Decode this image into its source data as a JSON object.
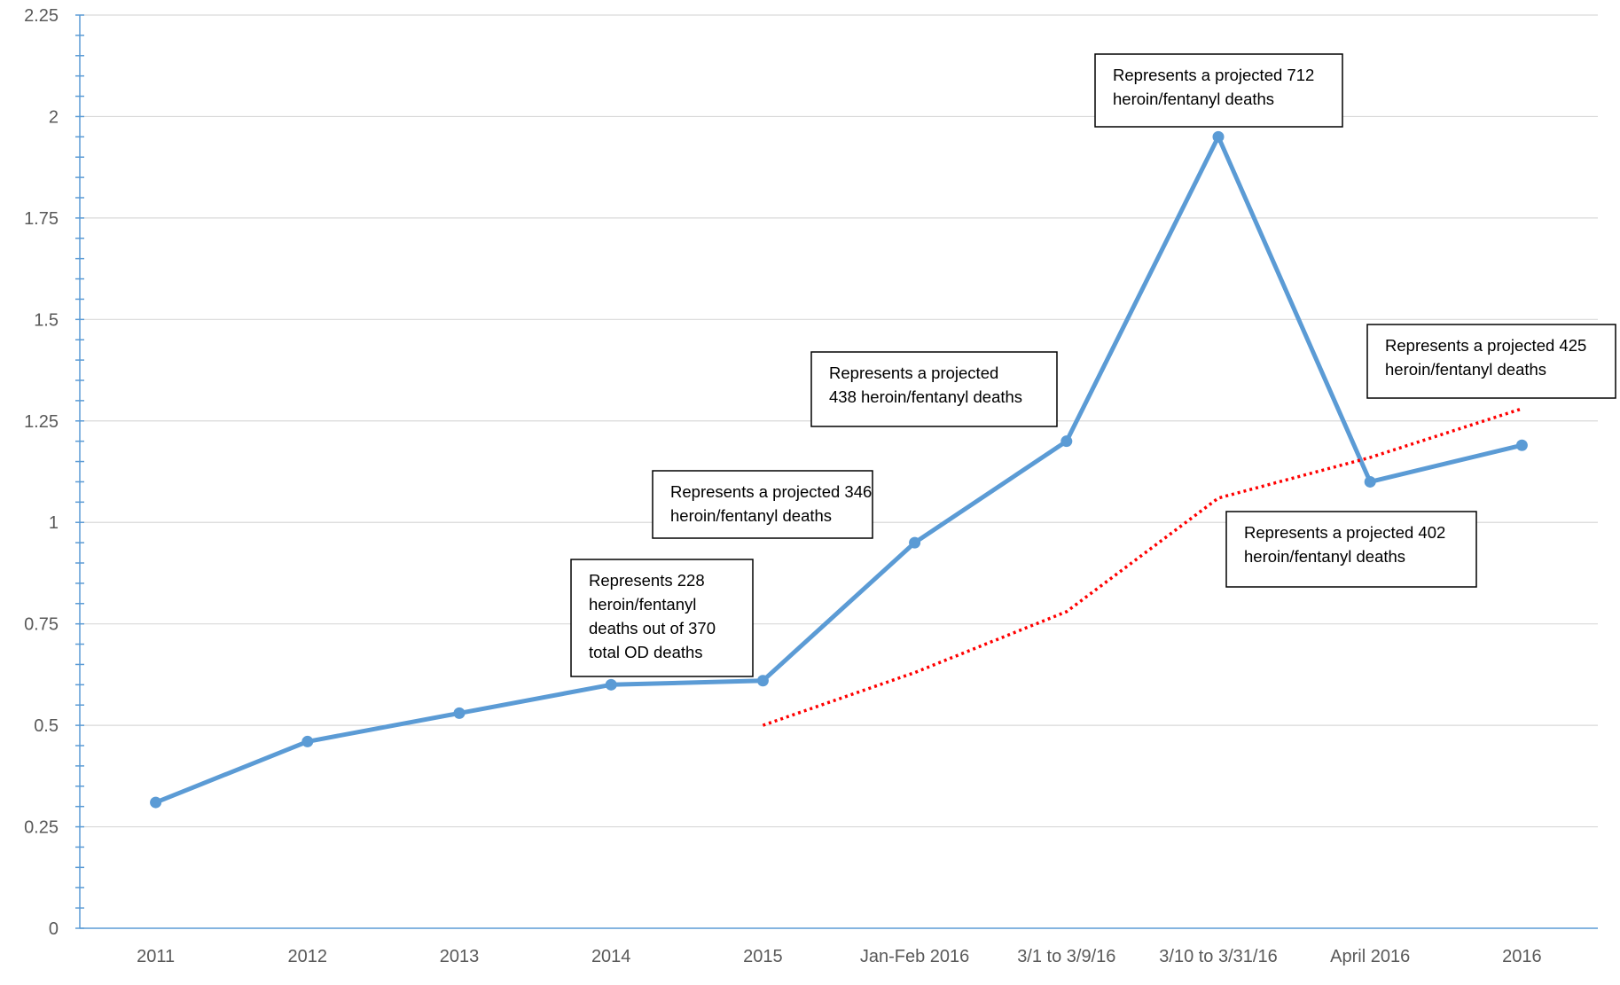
{
  "chart_data": {
    "type": "line",
    "categories": [
      "2011",
      "2012",
      "2013",
      "2014",
      "2015",
      "Jan-Feb 2016",
      "3/1 to 3/9/16",
      "3/10 to 3/31/16",
      "April 2016",
      "2016"
    ],
    "y_ticks": [
      "0",
      "0.25",
      "0.5",
      "0.75",
      "1",
      "1.25",
      "1.5",
      "1.75",
      "2",
      "2.25"
    ],
    "ylim": [
      0,
      2.25
    ],
    "grid": true,
    "series": [
      {
        "values": [
          0.31,
          0.46,
          0.53,
          0.6,
          0.61,
          0.95,
          1.2,
          1.95,
          1.1,
          1.19
        ],
        "color": "#5b9bd5",
        "style": "solid",
        "markers": true
      },
      {
        "values": [
          null,
          null,
          null,
          null,
          0.5,
          0.63,
          0.78,
          1.06,
          1.16,
          1.28
        ],
        "color": "#ff0000",
        "style": "dotted",
        "markers": false
      }
    ],
    "annotations": [
      {
        "lines": [
          "Represents 228",
          "heroin/fentanyl",
          "deaths out of 370",
          "total OD deaths"
        ]
      },
      {
        "lines": [
          "Represents a projected 346",
          "heroin/fentanyl deaths"
        ]
      },
      {
        "lines": [
          "Represents a projected",
          "438 heroin/fentanyl deaths"
        ]
      },
      {
        "lines": [
          "Represents a projected 712",
          "heroin/fentanyl deaths"
        ]
      },
      {
        "lines": [
          "Represents a projected 425",
          "heroin/fentanyl deaths"
        ]
      },
      {
        "lines": [
          "Represents a projected 402",
          "heroin/fentanyl deaths"
        ]
      }
    ]
  }
}
